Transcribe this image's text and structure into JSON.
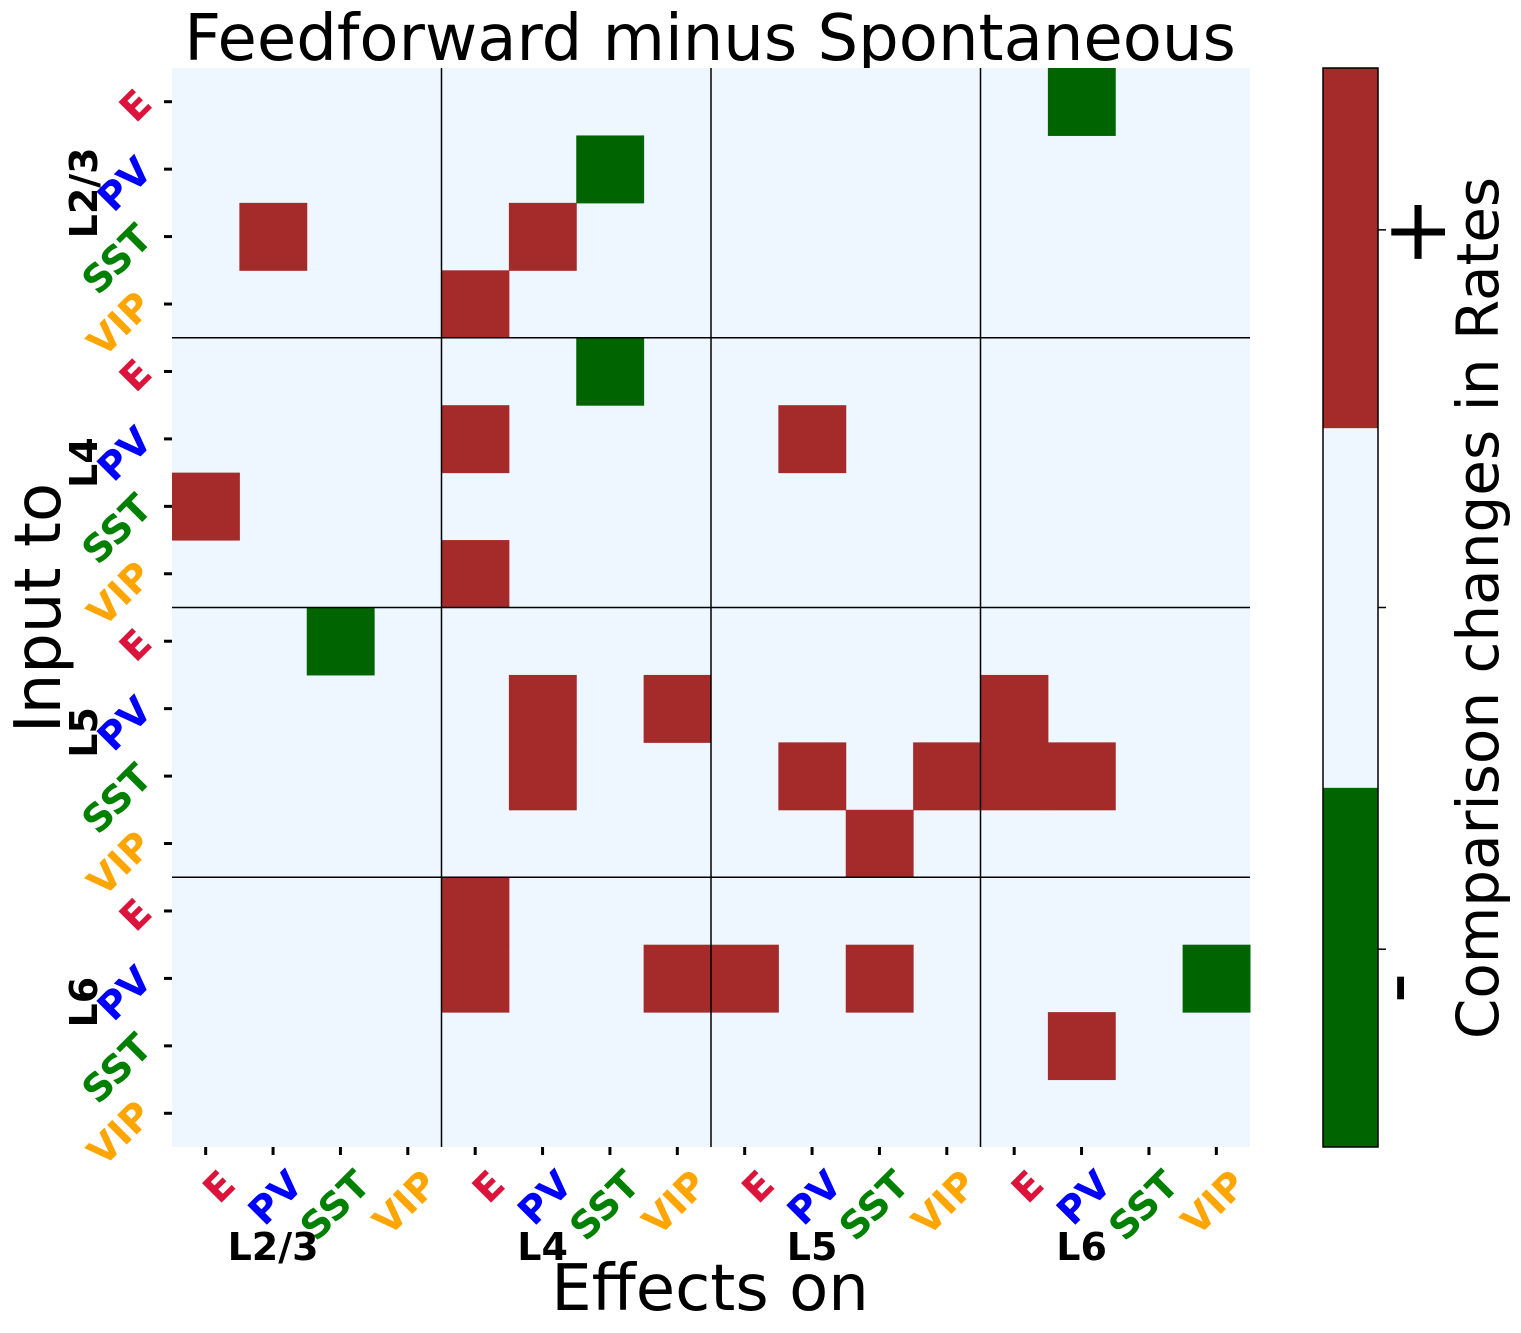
{
  "chart_data": {
    "type": "heatmap",
    "title": "Feedforward minus Spontaneous",
    "xlabel": "Effects on",
    "ylabel": "Input to",
    "layers": [
      "L2/3",
      "L4",
      "L5",
      "L6"
    ],
    "cell_types": [
      "E",
      "PV",
      "SST",
      "VIP"
    ],
    "cell_type_colors": {
      "E": "#dc143c",
      "PV": "#0000ff",
      "SST": "#008000",
      "VIP": "#ffa500"
    },
    "value_colors": {
      "-1": "#006400",
      "0": "#eef6ff",
      "1": "#a52a2a"
    },
    "matrix": [
      [
        0,
        0,
        0,
        0,
        0,
        0,
        0,
        0,
        0,
        0,
        0,
        0,
        0,
        -1,
        0,
        0
      ],
      [
        0,
        0,
        0,
        0,
        0,
        0,
        -1,
        0,
        0,
        0,
        0,
        0,
        0,
        0,
        0,
        0
      ],
      [
        0,
        1,
        0,
        0,
        0,
        1,
        0,
        0,
        0,
        0,
        0,
        0,
        0,
        0,
        0,
        0
      ],
      [
        0,
        0,
        0,
        0,
        1,
        0,
        0,
        0,
        0,
        0,
        0,
        0,
        0,
        0,
        0,
        0
      ],
      [
        0,
        0,
        0,
        0,
        0,
        0,
        -1,
        0,
        0,
        0,
        0,
        0,
        0,
        0,
        0,
        0
      ],
      [
        0,
        0,
        0,
        0,
        1,
        0,
        0,
        0,
        0,
        1,
        0,
        0,
        0,
        0,
        0,
        0
      ],
      [
        1,
        0,
        0,
        0,
        0,
        0,
        0,
        0,
        0,
        0,
        0,
        0,
        0,
        0,
        0,
        0
      ],
      [
        0,
        0,
        0,
        0,
        1,
        0,
        0,
        0,
        0,
        0,
        0,
        0,
        0,
        0,
        0,
        0
      ],
      [
        0,
        0,
        -1,
        0,
        0,
        0,
        0,
        0,
        0,
        0,
        0,
        0,
        0,
        0,
        0,
        0
      ],
      [
        0,
        0,
        0,
        0,
        0,
        1,
        0,
        1,
        0,
        0,
        0,
        0,
        1,
        0,
        0,
        0
      ],
      [
        0,
        0,
        0,
        0,
        0,
        1,
        0,
        0,
        0,
        1,
        0,
        1,
        1,
        1,
        0,
        0
      ],
      [
        0,
        0,
        0,
        0,
        0,
        0,
        0,
        0,
        0,
        0,
        1,
        0,
        0,
        0,
        0,
        0
      ],
      [
        0,
        0,
        0,
        0,
        1,
        0,
        0,
        0,
        0,
        0,
        0,
        0,
        0,
        0,
        0,
        0
      ],
      [
        0,
        0,
        0,
        0,
        1,
        0,
        0,
        1,
        1,
        0,
        1,
        0,
        0,
        0,
        0,
        -1
      ],
      [
        0,
        0,
        0,
        0,
        0,
        0,
        0,
        0,
        0,
        0,
        0,
        0,
        0,
        1,
        0,
        0
      ],
      [
        0,
        0,
        0,
        0,
        0,
        0,
        0,
        0,
        0,
        0,
        0,
        0,
        0,
        0,
        0,
        0
      ]
    ],
    "colorbar": {
      "label": "Comparison changes in Rates",
      "ticks": [
        "+",
        "-"
      ],
      "colors": [
        "#006400",
        "#eef6ff",
        "#a52a2a"
      ]
    }
  }
}
